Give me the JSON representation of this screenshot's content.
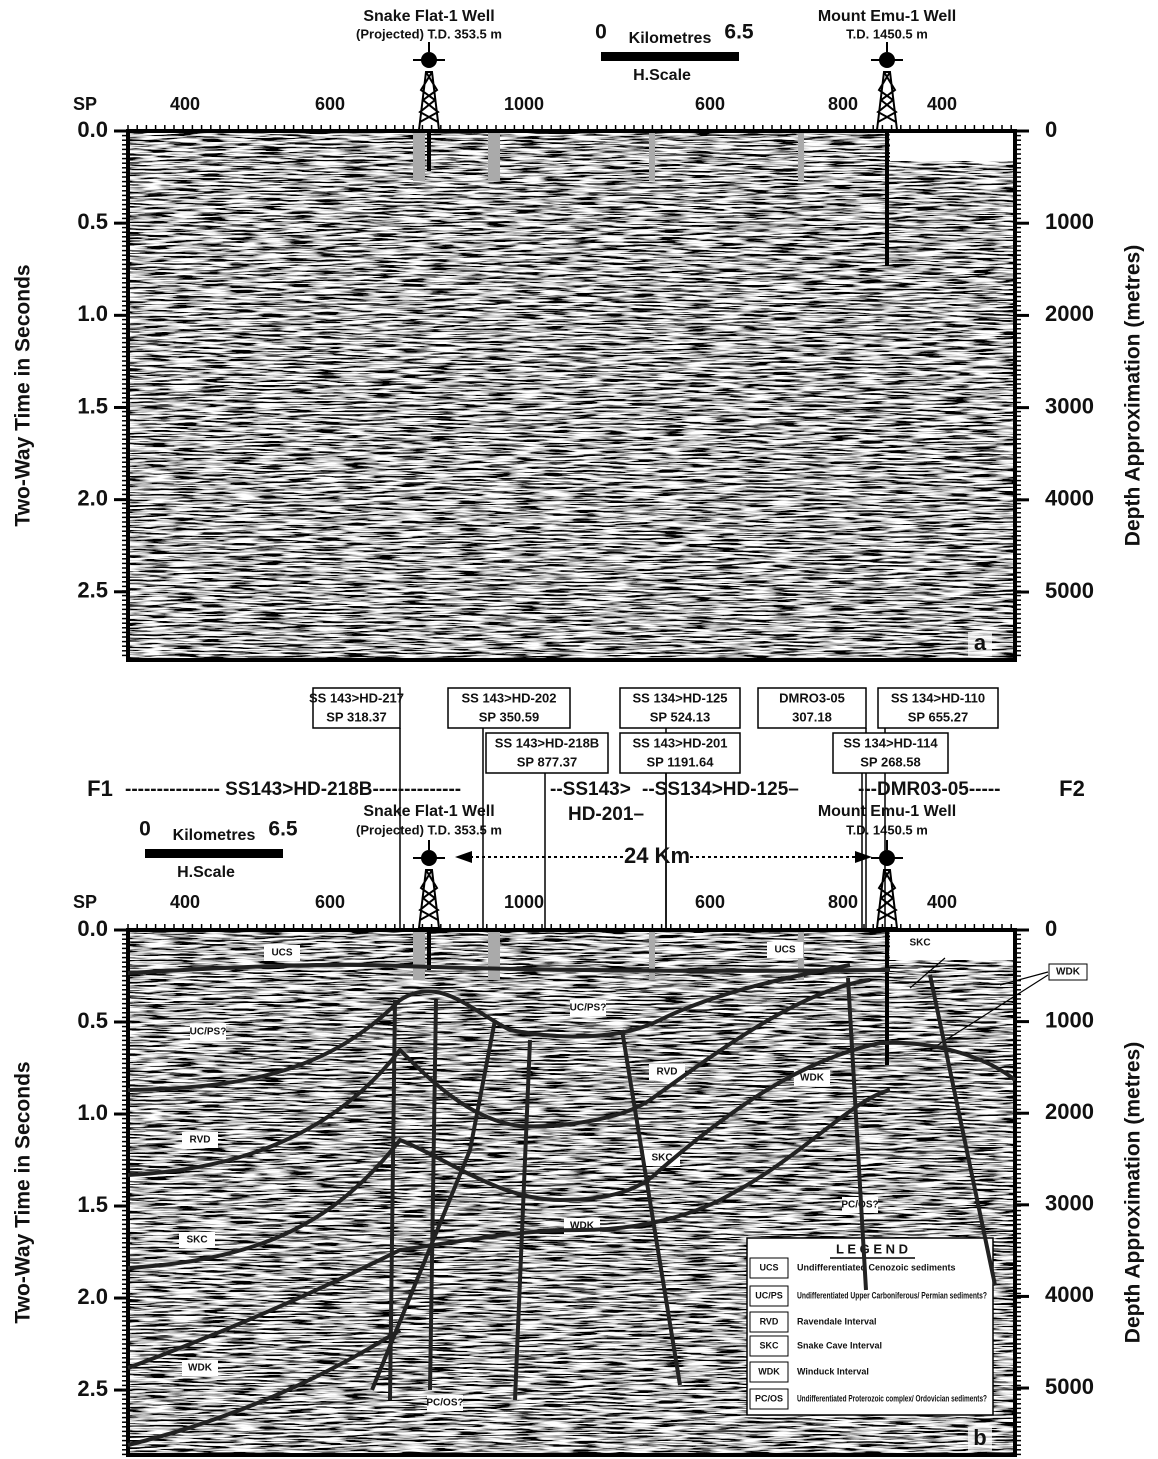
{
  "panels": [
    {
      "letter": "a",
      "wells": [
        {
          "name": "Snake Flat-1 Well",
          "note": "(Projected) T.D. 353.5 m"
        },
        {
          "name": "Mount Emu-1 Well",
          "note": "T.D. 1450.5 m"
        }
      ],
      "scale": {
        "start": "0",
        "unit": "Kilometres",
        "end": "6.5",
        "caption": "H.Scale"
      },
      "sp_label": "SP",
      "sp_ticks": [
        "400",
        "600",
        "1000",
        "600",
        "800",
        "400"
      ],
      "left_axis": {
        "title": "Two-Way Time in Seconds",
        "lim": [
          0,
          2.87
        ],
        "ticks": [
          {
            "value": 0,
            "label": "0.0"
          },
          {
            "value": 0.5,
            "label": "0.5"
          },
          {
            "value": 1,
            "label": "1.0"
          },
          {
            "value": 1.5,
            "label": "1.5"
          },
          {
            "value": 2,
            "label": "2.0"
          },
          {
            "value": 2.5,
            "label": "2.5"
          }
        ]
      },
      "right_axis": {
        "title": "Depth Approximation (metres)",
        "lim": [
          0,
          5737
        ],
        "ticks": [
          0,
          1000,
          2000,
          3000,
          4000,
          5000
        ]
      }
    },
    {
      "letter": "b",
      "wells": [
        {
          "name": "Snake Flat-1 Well",
          "note": "(Projected) T.D. 353.5 m"
        },
        {
          "name": "Mount Emu-1 Well",
          "note": "T.D. 1450.5 m"
        }
      ],
      "scale": {
        "start": "0",
        "unit": "Kilometres",
        "end": "6.5",
        "caption": "H.Scale"
      },
      "sp_label": "SP",
      "sp_ticks": [
        "400",
        "600",
        "1000",
        "600",
        "800",
        "400"
      ],
      "left_axis": {
        "title": "Two-Way Time in Seconds",
        "lim": [
          0,
          2.853
        ],
        "ticks": [
          {
            "value": 0,
            "label": "0.0"
          },
          {
            "value": 0.5,
            "label": "0.5"
          },
          {
            "value": 1,
            "label": "1.0"
          },
          {
            "value": 1.5,
            "label": "1.5"
          },
          {
            "value": 2,
            "label": "2.0"
          },
          {
            "value": 2.5,
            "label": "2.5"
          }
        ]
      },
      "right_axis": {
        "title": "Depth Approximation (metres)",
        "lim": [
          0,
          5731
        ],
        "ticks": [
          0,
          1000,
          2000,
          3000,
          4000,
          5000
        ]
      },
      "line_boxes": [
        [
          "SS 143>HD-217",
          "SP 318.37"
        ],
        [
          "SS 143>HD-202",
          "SP 350.59"
        ],
        [
          "SS 143>HD-218B",
          "SP 877.37"
        ],
        [
          "SS 134>HD-125",
          "SP 524.13"
        ],
        [
          "SS 143>HD-201",
          "SP 1191.64"
        ],
        [
          "DMRO3-05",
          "307.18"
        ],
        [
          "SS 134>HD-110",
          "SP 655.27"
        ],
        [
          "SS 134>HD-114",
          "SP 268.58"
        ]
      ],
      "tie_line": {
        "start": "F1",
        "segments": [
          "--------------- SS143>HD-218B--------------",
          "--SS143>",
          "HD-201–",
          "--SS134>HD-125–",
          "---DMR03-05-----"
        ],
        "end": "F2"
      },
      "distance": "24 Km",
      "unit_labels": [
        "UCS",
        "UCS",
        "UC/PS?",
        "UC/PS?",
        "RVD",
        "RVD",
        "SKC",
        "SKC",
        "SKC",
        "WDK",
        "WDK",
        "WDK",
        "WDK",
        "PC/OS?",
        "PC/OS?"
      ],
      "legend": {
        "title": "L E G E N D",
        "rows": [
          [
            "UCS",
            "Undifferentiated Cenozoic sediments"
          ],
          [
            "UC/PS",
            "Undifferentiated Upper Carboniferous/ Permian sediments?"
          ],
          [
            "RVD",
            "Ravendale Interval"
          ],
          [
            "SKC",
            "Snake Cave Interval"
          ],
          [
            "WDK",
            "Winduck Interval"
          ],
          [
            "PC/OS",
            "Undifferentiated Proterozoic complex/ Ordovician sediments?"
          ]
        ]
      }
    }
  ]
}
